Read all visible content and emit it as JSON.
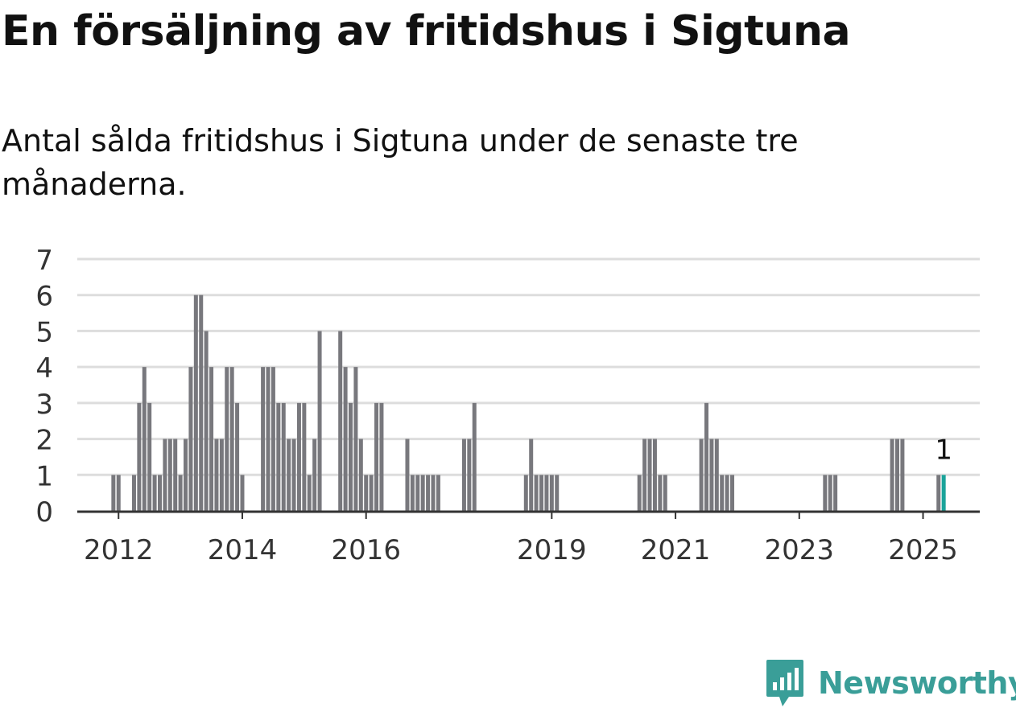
{
  "title": "En försäljning av fritidshus i Sigtuna",
  "subtitle": "Antal sålda fritidshus i Sigtuna under de senaste tre månaderna.",
  "logo": {
    "text": "Newsworthy",
    "icon": "bar-chart-chat-icon",
    "color": "#3a9e98"
  },
  "colors": {
    "bar": "#78787d",
    "highlight": "#1aa39a",
    "grid": "#dddddd",
    "axis": "#333333",
    "text": "#333333"
  },
  "chart_data": {
    "type": "bar",
    "title": "En försäljning av fritidshus i Sigtuna",
    "subtitle": "Antal sålda fritidshus i Sigtuna under de senaste tre månaderna.",
    "xlabel": "",
    "ylabel": "",
    "ylim": [
      0,
      7
    ],
    "yticks": [
      0,
      1,
      2,
      3,
      4,
      5,
      6,
      7
    ],
    "xlim": [
      "2011-05",
      "2025-12"
    ],
    "xticks": [
      "2012",
      "2014",
      "2016",
      "2019",
      "2021",
      "2023",
      "2025"
    ],
    "grid": true,
    "annotation": {
      "month": "2025-05",
      "text": "1"
    },
    "series": [
      {
        "months": [
          "2011-12",
          "2012-01",
          "2012-04",
          "2012-05",
          "2012-06",
          "2012-07",
          "2012-08",
          "2012-09",
          "2012-10",
          "2012-11",
          "2012-12",
          "2013-01",
          "2013-02",
          "2013-03",
          "2013-04",
          "2013-05",
          "2013-06",
          "2013-07",
          "2013-08",
          "2013-09",
          "2013-10",
          "2013-11",
          "2013-12",
          "2014-01",
          "2014-05",
          "2014-06",
          "2014-07",
          "2014-08",
          "2014-09",
          "2014-10",
          "2014-11",
          "2014-12",
          "2015-01",
          "2015-02",
          "2015-03",
          "2015-04",
          "2015-08",
          "2015-09",
          "2015-10",
          "2015-11",
          "2015-12",
          "2016-01",
          "2016-02",
          "2016-03",
          "2016-04",
          "2016-09",
          "2016-10",
          "2016-11",
          "2016-12",
          "2017-01",
          "2017-02",
          "2017-03",
          "2017-08",
          "2017-09",
          "2017-10",
          "2018-08",
          "2018-09",
          "2018-10",
          "2018-11",
          "2018-12",
          "2019-01",
          "2019-02",
          "2020-06",
          "2020-07",
          "2020-08",
          "2020-09",
          "2020-10",
          "2020-11",
          "2021-06",
          "2021-07",
          "2021-08",
          "2021-09",
          "2021-10",
          "2021-11",
          "2021-12",
          "2023-06",
          "2023-07",
          "2023-08",
          "2024-07",
          "2024-08",
          "2024-09",
          "2025-04",
          "2025-05"
        ],
        "values": [
          1,
          1,
          1,
          3,
          4,
          3,
          1,
          1,
          2,
          2,
          2,
          1,
          2,
          4,
          6,
          6,
          5,
          4,
          2,
          2,
          4,
          4,
          3,
          1,
          4,
          4,
          4,
          3,
          3,
          2,
          2,
          3,
          3,
          1,
          2,
          5,
          5,
          4,
          3,
          4,
          2,
          1,
          1,
          3,
          3,
          2,
          1,
          1,
          1,
          1,
          1,
          1,
          2,
          2,
          3,
          1,
          2,
          1,
          1,
          1,
          1,
          1,
          1,
          2,
          2,
          2,
          1,
          1,
          2,
          3,
          2,
          2,
          1,
          1,
          1,
          1,
          1,
          1,
          2,
          2,
          2,
          1,
          1
        ]
      }
    ]
  }
}
